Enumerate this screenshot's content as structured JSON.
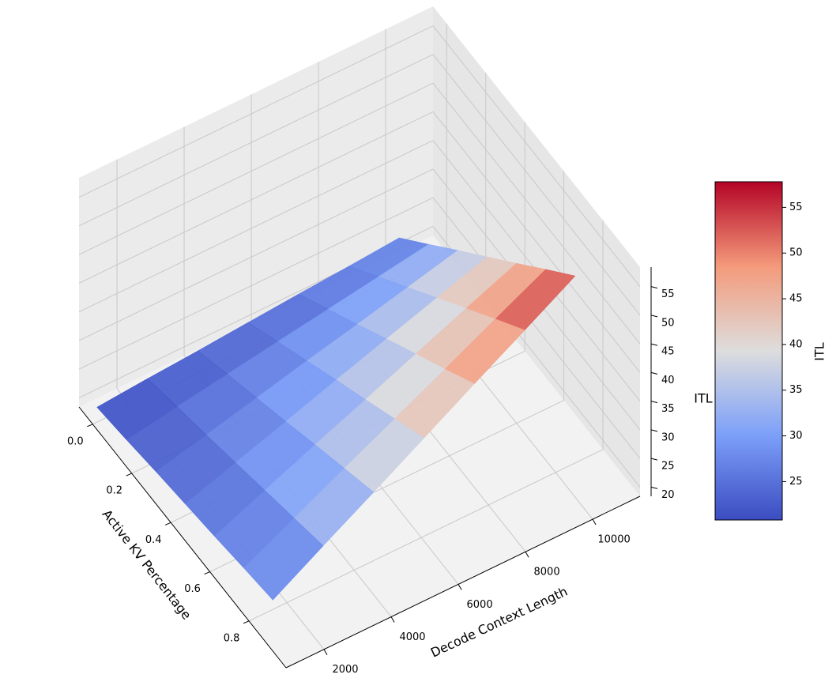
{
  "chart_data": {
    "type": "surface",
    "x_label": "Active KV Percentage",
    "y_label": "Decode Context Length",
    "z_label": "ITL",
    "colorbar_label": "ITL",
    "x": [
      0,
      0.15,
      0.3,
      0.45,
      0.6,
      0.75,
      0.9
    ],
    "y": [
      1000,
      2500,
      4000,
      5500,
      7000,
      8500,
      10000
    ],
    "z": [
      [
        21.0,
        21.7,
        22.3,
        23.0,
        23.7,
        24.3,
        25.0
      ],
      [
        21.8,
        23.3,
        24.7,
        26.1,
        27.5,
        28.9,
        30.3
      ],
      [
        22.7,
        24.8,
        27.0,
        29.2,
        31.3,
        33.5,
        35.7
      ],
      [
        23.5,
        26.4,
        29.3,
        32.3,
        35.2,
        38.1,
        41.0
      ],
      [
        24.3,
        28.0,
        31.7,
        35.3,
        39.0,
        42.7,
        46.3
      ],
      [
        25.2,
        29.6,
        34.0,
        38.4,
        42.8,
        47.3,
        51.7
      ],
      [
        26.0,
        31.2,
        36.3,
        41.5,
        46.7,
        51.8,
        57.0
      ]
    ],
    "xlim": [
      -0.07,
      0.99
    ],
    "ylim": [
      870,
      11410
    ],
    "zlim": [
      18.4,
      58.4
    ],
    "xticks": [
      {
        "value": 0,
        "label": "0.0"
      },
      0.2,
      0.4,
      0.6,
      0.8
    ],
    "yticks": [
      2000,
      4000,
      6000,
      8000,
      10000
    ],
    "zticks": [
      20,
      25,
      30,
      35,
      40,
      45,
      50,
      55
    ],
    "colormap": [
      "#3b4cc0",
      "#7c9ff9",
      "#dddddd",
      "#f49a7b",
      "#b40426"
    ],
    "clim": [
      20.8,
      57.8
    ],
    "cticks": [
      25,
      30,
      35,
      40,
      45,
      50,
      55
    ],
    "grid": true
  }
}
